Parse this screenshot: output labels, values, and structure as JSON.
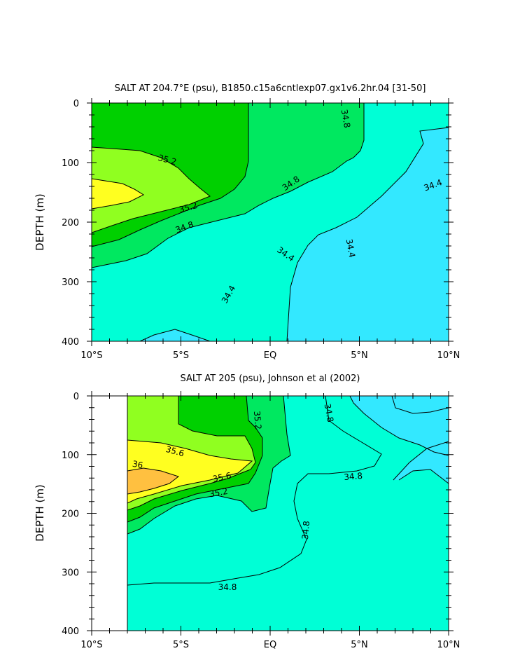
{
  "colors": {
    "c_lt_344": "#33e8ff",
    "c_344_348": "#00ffd6",
    "c_348_352": "#00e860",
    "c_352_356": "#00d000",
    "c_356_36": "#90ff20",
    "c_36_364": "#ffff20",
    "c_gt_364": "#ffc040",
    "no_data": "#ffffff",
    "contour_line": "#000000"
  },
  "chart_data": [
    {
      "type": "heatmap",
      "subtype": "filled-contour",
      "title": "SALT AT 204.7°E (psu), B1850.c15a6cntlexp07.gx1v6.2hr.04 [31-50]",
      "xlabel": "",
      "ylabel": "DEPTH (m)",
      "xlim": [
        -10,
        10
      ],
      "ylim": [
        400,
        0
      ],
      "x_ticks": [
        -10,
        -5,
        0,
        5,
        10
      ],
      "x_tick_labels": [
        "10°S",
        "5°S",
        "EQ",
        "5°N",
        "10°N"
      ],
      "y_ticks": [
        0,
        100,
        200,
        300,
        400
      ],
      "y_tick_labels": [
        "0",
        "100",
        "200",
        "300",
        "400"
      ],
      "contour_labels": [
        "35.2",
        "34.8",
        "34.8",
        "34.4",
        "35.2",
        "34.8",
        "34.4",
        "34.4",
        "34.4"
      ]
    },
    {
      "type": "heatmap",
      "subtype": "filled-contour",
      "title": "SALT AT 205 (psu), Johnson et al (2002)",
      "xlabel": "",
      "ylabel": "DEPTH (m)",
      "xlim": [
        -10,
        10
      ],
      "ylim": [
        400,
        0
      ],
      "data_xrange": [
        -8,
        10
      ],
      "x_ticks": [
        -10,
        -5,
        0,
        5,
        10
      ],
      "x_tick_labels": [
        "10°S",
        "5°S",
        "EQ",
        "5°N",
        "10°N"
      ],
      "y_ticks": [
        0,
        100,
        200,
        300,
        400
      ],
      "y_tick_labels": [
        "0",
        "100",
        "200",
        "300",
        "400"
      ],
      "contour_labels": [
        "35.2",
        "34.8",
        "35.6",
        "36",
        "35.6",
        "35.2",
        "34.8",
        "34.8",
        "34.8"
      ]
    }
  ]
}
